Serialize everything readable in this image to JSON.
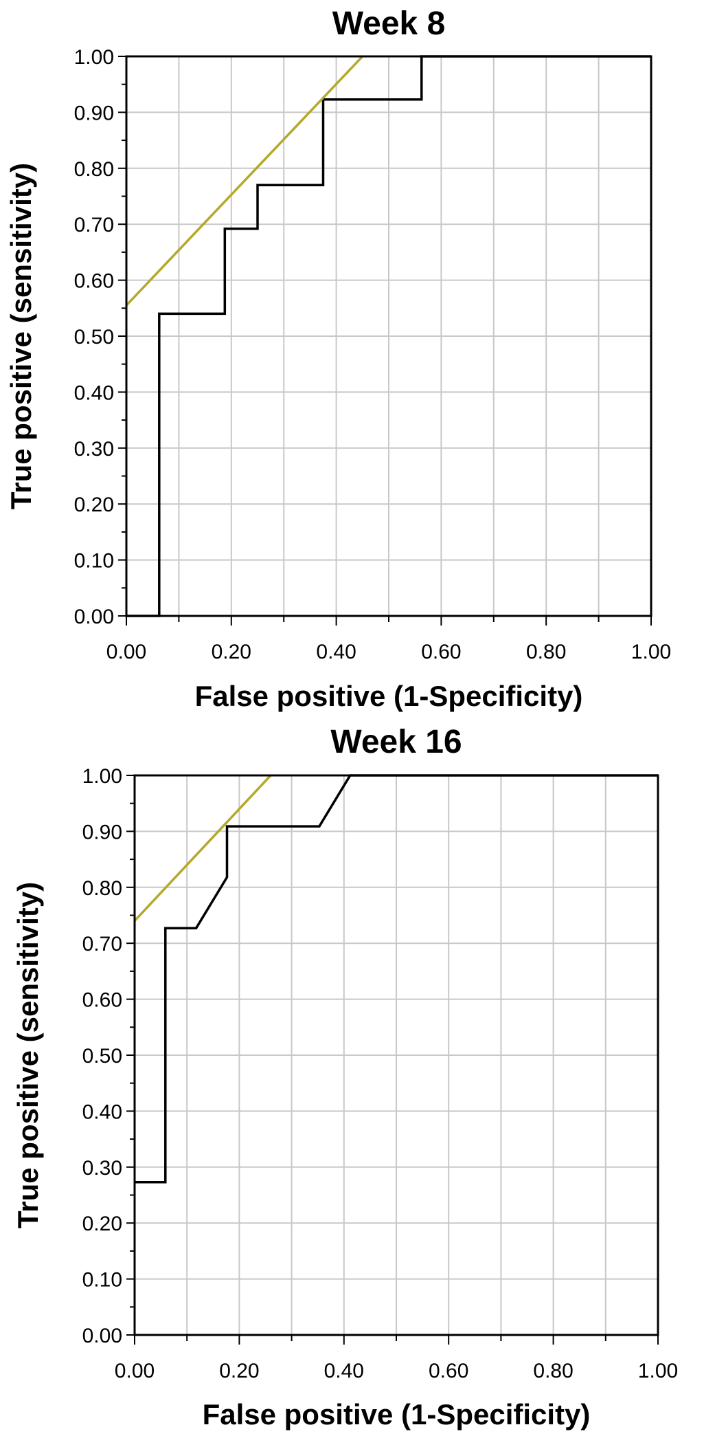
{
  "chart_data": [
    {
      "type": "line",
      "title": "Week 8",
      "xlabel": "False positive (1-Specificity)",
      "ylabel": "True positive (sensitivity)",
      "xlim": [
        0,
        1
      ],
      "ylim": [
        0,
        1
      ],
      "x_ticks": [
        "0.00",
        "0.20",
        "0.40",
        "0.60",
        "0.80",
        "1.00"
      ],
      "y_ticks": [
        "0.00",
        "0.10",
        "0.20",
        "0.30",
        "0.40",
        "0.50",
        "0.60",
        "0.70",
        "0.80",
        "0.90",
        "1.00"
      ],
      "grid": true,
      "series": [
        {
          "color": "#000000",
          "x": [
            0.0,
            0.0625,
            0.0625,
            0.1875,
            0.1875,
            0.25,
            0.25,
            0.375,
            0.375,
            0.5625,
            0.5625,
            1.0
          ],
          "y": [
            0.0,
            0.0,
            0.54,
            0.54,
            0.692,
            0.692,
            0.77,
            0.77,
            0.923,
            0.923,
            1.0,
            1.0
          ]
        },
        {
          "color": "#b5a82a",
          "x": [
            0.0,
            0.45
          ],
          "y": [
            0.555,
            1.0
          ]
        }
      ]
    },
    {
      "type": "line",
      "title": "Week 16",
      "xlabel": "False positive (1-Specificity)",
      "ylabel": "True positive (sensitivity)",
      "xlim": [
        0,
        1
      ],
      "ylim": [
        0,
        1
      ],
      "x_ticks": [
        "0.00",
        "0.20",
        "0.40",
        "0.60",
        "0.80",
        "1.00"
      ],
      "y_ticks": [
        "0.00",
        "0.10",
        "0.20",
        "0.30",
        "0.40",
        "0.50",
        "0.60",
        "0.70",
        "0.80",
        "0.90",
        "1.00"
      ],
      "grid": true,
      "series": [
        {
          "color": "#000000",
          "x": [
            0.0,
            0.0588,
            0.0588,
            0.1176,
            0.1765,
            0.1765,
            0.3529,
            0.4118,
            1.0
          ],
          "y": [
            0.273,
            0.273,
            0.727,
            0.727,
            0.818,
            0.909,
            0.909,
            1.0,
            1.0
          ]
        },
        {
          "color": "#b5a82a",
          "x": [
            0.0,
            0.26
          ],
          "y": [
            0.74,
            1.0
          ]
        }
      ]
    }
  ]
}
